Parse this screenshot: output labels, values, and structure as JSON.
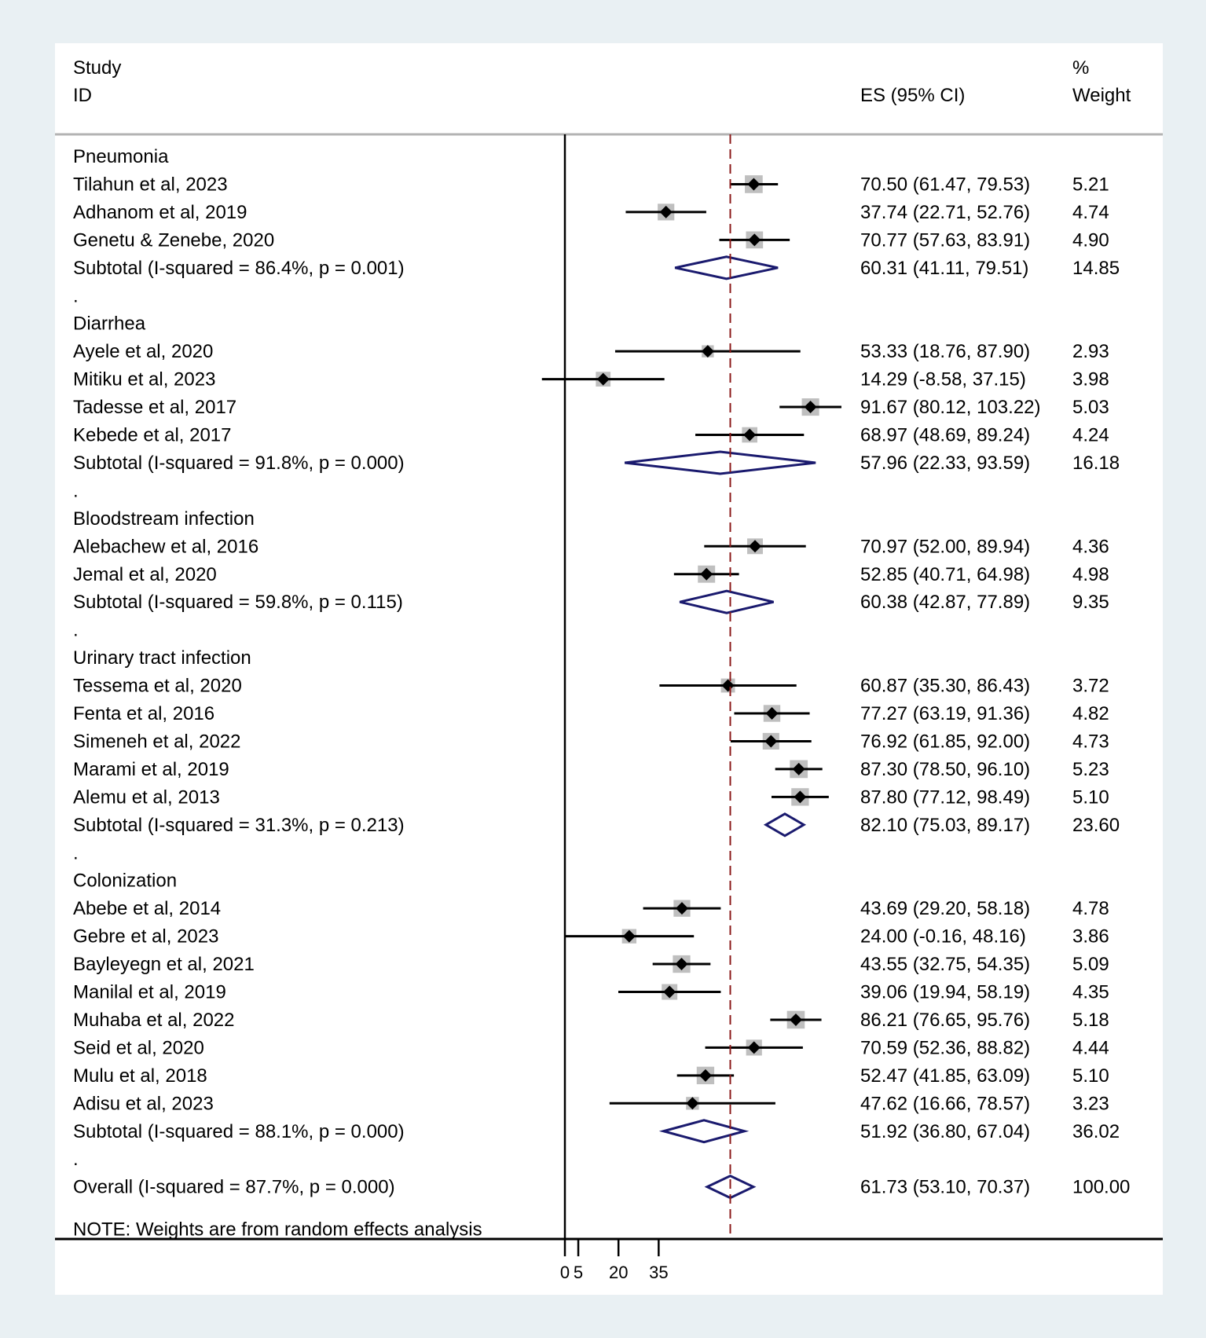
{
  "chart_data": {
    "type": "forest",
    "header": {
      "study_line1": "Study",
      "study_line2": "ID",
      "es_label": "ES (95% CI)",
      "weight_line1": "%",
      "weight_line2": "Weight"
    },
    "x_ticks": [
      0,
      5,
      20,
      35
    ],
    "overall_reference": 61.73,
    "groups": [
      {
        "name": "Pneumonia",
        "studies": [
          {
            "label": "Tilahun et al, 2023",
            "es": 70.5,
            "lo": 61.47,
            "hi": 79.53,
            "es_text": "70.50 (61.47, 79.53)",
            "weight": "5.21"
          },
          {
            "label": "Adhanom et al, 2019",
            "es": 37.74,
            "lo": 22.71,
            "hi": 52.76,
            "es_text": "37.74 (22.71, 52.76)",
            "weight": "4.74"
          },
          {
            "label": "Genetu & Zenebe, 2020",
            "es": 70.77,
            "lo": 57.63,
            "hi": 83.91,
            "es_text": "70.77 (57.63, 83.91)",
            "weight": "4.90"
          }
        ],
        "subtotal": {
          "label": "Subtotal  (I-squared = 86.4%, p = 0.001)",
          "es": 60.31,
          "lo": 41.11,
          "hi": 79.51,
          "es_text": "60.31 (41.11, 79.51)",
          "weight": "14.85"
        }
      },
      {
        "name": "Diarrhea",
        "studies": [
          {
            "label": "Ayele et al, 2020",
            "es": 53.33,
            "lo": 18.76,
            "hi": 87.9,
            "es_text": "53.33 (18.76, 87.90)",
            "weight": "2.93"
          },
          {
            "label": "Mitiku et al, 2023",
            "es": 14.29,
            "lo": -8.58,
            "hi": 37.15,
            "es_text": "14.29 (-8.58, 37.15)",
            "weight": "3.98"
          },
          {
            "label": "Tadesse et al, 2017",
            "es": 91.67,
            "lo": 80.12,
            "hi": 103.22,
            "es_text": "91.67 (80.12, 103.22)",
            "weight": "5.03"
          },
          {
            "label": "Kebede et al, 2017",
            "es": 68.97,
            "lo": 48.69,
            "hi": 89.24,
            "es_text": "68.97 (48.69, 89.24)",
            "weight": "4.24"
          }
        ],
        "subtotal": {
          "label": "Subtotal  (I-squared = 91.8%, p = 0.000)",
          "es": 57.96,
          "lo": 22.33,
          "hi": 93.59,
          "es_text": "57.96 (22.33, 93.59)",
          "weight": "16.18"
        }
      },
      {
        "name": "Bloodstream infection",
        "studies": [
          {
            "label": "Alebachew et al, 2016",
            "es": 70.97,
            "lo": 52.0,
            "hi": 89.94,
            "es_text": "70.97 (52.00, 89.94)",
            "weight": "4.36"
          },
          {
            "label": "Jemal et al, 2020",
            "es": 52.85,
            "lo": 40.71,
            "hi": 64.98,
            "es_text": "52.85 (40.71, 64.98)",
            "weight": "4.98"
          }
        ],
        "subtotal": {
          "label": "Subtotal  (I-squared = 59.8%, p = 0.115)",
          "es": 60.38,
          "lo": 42.87,
          "hi": 77.89,
          "es_text": "60.38 (42.87, 77.89)",
          "weight": "9.35"
        }
      },
      {
        "name": "Urinary tract infection",
        "studies": [
          {
            "label": "Tessema et al, 2020",
            "es": 60.87,
            "lo": 35.3,
            "hi": 86.43,
            "es_text": "60.87 (35.30, 86.43)",
            "weight": "3.72"
          },
          {
            "label": "Fenta et al, 2016",
            "es": 77.27,
            "lo": 63.19,
            "hi": 91.36,
            "es_text": "77.27 (63.19, 91.36)",
            "weight": "4.82"
          },
          {
            "label": "Simeneh et al, 2022",
            "es": 76.92,
            "lo": 61.85,
            "hi": 92.0,
            "es_text": "76.92 (61.85, 92.00)",
            "weight": "4.73"
          },
          {
            "label": "Marami et al, 2019",
            "es": 87.3,
            "lo": 78.5,
            "hi": 96.1,
            "es_text": "87.30 (78.50, 96.10)",
            "weight": "5.23"
          },
          {
            "label": "Alemu et al, 2013",
            "es": 87.8,
            "lo": 77.12,
            "hi": 98.49,
            "es_text": "87.80 (77.12, 98.49)",
            "weight": "5.10"
          }
        ],
        "subtotal": {
          "label": "Subtotal  (I-squared = 31.3%, p = 0.213)",
          "es": 82.1,
          "lo": 75.03,
          "hi": 89.17,
          "es_text": "82.10 (75.03, 89.17)",
          "weight": "23.60"
        }
      },
      {
        "name": "Colonization",
        "studies": [
          {
            "label": "Abebe et al, 2014",
            "es": 43.69,
            "lo": 29.2,
            "hi": 58.18,
            "es_text": "43.69 (29.20, 58.18)",
            "weight": "4.78"
          },
          {
            "label": "Gebre et al, 2023",
            "es": 24.0,
            "lo": -0.16,
            "hi": 48.16,
            "es_text": "24.00 (-0.16, 48.16)",
            "weight": "3.86"
          },
          {
            "label": "Bayleyegn et al, 2021",
            "es": 43.55,
            "lo": 32.75,
            "hi": 54.35,
            "es_text": "43.55 (32.75, 54.35)",
            "weight": "5.09"
          },
          {
            "label": "Manilal et al, 2019",
            "es": 39.06,
            "lo": 19.94,
            "hi": 58.19,
            "es_text": "39.06 (19.94, 58.19)",
            "weight": "4.35"
          },
          {
            "label": "Muhaba et al, 2022",
            "es": 86.21,
            "lo": 76.65,
            "hi": 95.76,
            "es_text": "86.21 (76.65, 95.76)",
            "weight": "5.18"
          },
          {
            "label": "Seid et al, 2020",
            "es": 70.59,
            "lo": 52.36,
            "hi": 88.82,
            "es_text": "70.59 (52.36, 88.82)",
            "weight": "4.44"
          },
          {
            "label": "Mulu et al, 2018",
            "es": 52.47,
            "lo": 41.85,
            "hi": 63.09,
            "es_text": "52.47 (41.85, 63.09)",
            "weight": "5.10"
          },
          {
            "label": "Adisu et al, 2023",
            "es": 47.62,
            "lo": 16.66,
            "hi": 78.57,
            "es_text": "47.62 (16.66, 78.57)",
            "weight": "3.23"
          }
        ],
        "subtotal": {
          "label": "Subtotal  (I-squared = 88.1%, p = 0.000)",
          "es": 51.92,
          "lo": 36.8,
          "hi": 67.04,
          "es_text": "51.92 (36.80, 67.04)",
          "weight": "36.02"
        }
      }
    ],
    "group_separator": ".",
    "overall": {
      "label": "Overall  (I-squared = 87.7%, p = 0.000)",
      "es": 61.73,
      "lo": 53.1,
      "hi": 70.37,
      "es_text": "61.73 (53.10, 70.37)",
      "weight": "100.00"
    },
    "note": "NOTE: Weights are from random effects analysis",
    "colors": {
      "ci_line": "#000000",
      "weight_box": "#bfbfbf",
      "point": "#000000",
      "diamond": "#1a1a6e",
      "reference_line": "#8b1a1a",
      "axis": "#000000",
      "header_rule": "#b3b3b3"
    }
  }
}
